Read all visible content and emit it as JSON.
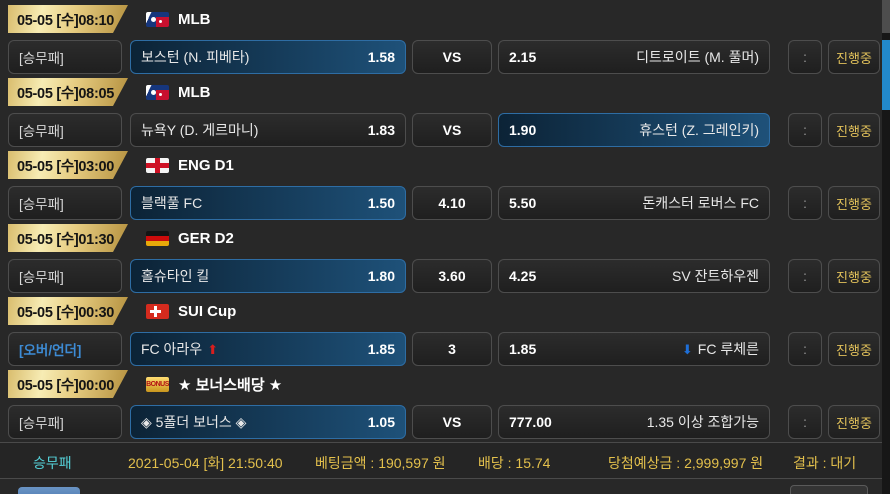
{
  "colors": {
    "gold_banner": "#e6cc81",
    "status_gold": "#e0c05a",
    "selected_gradient_left": "#0c2336",
    "selected_gradient_right": "#1e5179",
    "selected_border": "#2e6da4",
    "market_highlight_blue": "#3d8bd4",
    "summary_market_cyan": "#55d3da",
    "summary_yellow": "#e3c04c",
    "arrow_up_red": "#d81e1e",
    "arrow_down_blue": "#1e6fd8",
    "scroll_thumb_blue": "#2289cc"
  },
  "games": [
    {
      "datetime": "05-05 [수]08:10",
      "league": "MLB",
      "icon": "mlb",
      "icon_text": "",
      "market": "[승무패]",
      "market_highlight": false,
      "home": {
        "name": "보스턴 (N. 피베타)",
        "odds": "1.58",
        "selected": true,
        "arrow": ""
      },
      "draw": "VS",
      "away": {
        "name": "디트로이트 (M. 풀머)",
        "odds": "2.15",
        "selected": false,
        "arrow": ""
      },
      "score": ":",
      "status": "진행중"
    },
    {
      "datetime": "05-05 [수]08:05",
      "league": "MLB",
      "icon": "mlb",
      "icon_text": "",
      "market": "[승무패]",
      "market_highlight": false,
      "home": {
        "name": "뉴욕Y (D. 게르마니)",
        "odds": "1.83",
        "selected": false,
        "arrow": ""
      },
      "draw": "VS",
      "away": {
        "name": "휴스턴 (Z. 그레인키)",
        "odds": "1.90",
        "selected": true,
        "arrow": ""
      },
      "score": ":",
      "status": "진행중"
    },
    {
      "datetime": "05-05 [수]03:00",
      "league": "ENG D1",
      "icon": "eng",
      "icon_text": "",
      "market": "[승무패]",
      "market_highlight": false,
      "home": {
        "name": "블랙풀 FC",
        "odds": "1.50",
        "selected": true,
        "arrow": ""
      },
      "draw": "4.10",
      "away": {
        "name": "돈캐스터 로버스 FC",
        "odds": "5.50",
        "selected": false,
        "arrow": ""
      },
      "score": ":",
      "status": "진행중"
    },
    {
      "datetime": "05-05 [수]01:30",
      "league": "GER D2",
      "icon": "ger",
      "icon_text": "",
      "market": "[승무패]",
      "market_highlight": false,
      "home": {
        "name": "홀슈타인 킬",
        "odds": "1.80",
        "selected": true,
        "arrow": ""
      },
      "draw": "3.60",
      "away": {
        "name": "SV 잔트하우젠",
        "odds": "4.25",
        "selected": false,
        "arrow": ""
      },
      "score": ":",
      "status": "진행중"
    },
    {
      "datetime": "05-05 [수]00:30",
      "league": "SUI Cup",
      "icon": "sui",
      "icon_text": "",
      "market": "[오버/언더]",
      "market_highlight": true,
      "home": {
        "name": "FC 아라우",
        "odds": "1.85",
        "selected": true,
        "arrow": "up"
      },
      "draw": "3",
      "away": {
        "name": "FC 루체른",
        "odds": "1.85",
        "selected": false,
        "arrow": "down"
      },
      "score": ":",
      "status": "진행중"
    },
    {
      "datetime": "05-05 [수]00:00",
      "league": "★ 보너스배당 ★",
      "icon": "bonus",
      "icon_text": "BONUS",
      "market": "[승무패]",
      "market_highlight": false,
      "home": {
        "name": "◈ 5폴더 보너스 ◈",
        "odds": "1.05",
        "selected": true,
        "arrow": ""
      },
      "draw": "VS",
      "away": {
        "name": "1.35 이상 조합가능",
        "odds": "777.00",
        "selected": false,
        "arrow": ""
      },
      "score": ":",
      "status": "진행중"
    }
  ],
  "summary": {
    "market": "승무패",
    "datetime": "2021-05-04 [화] 21:50:40",
    "bet_amount": "베팅금액 : 190,597 원",
    "total_odds": "배당 : 15.74",
    "expected_win": "당첨예상금 : 2,999,997 원",
    "result": "결과 : 대기"
  }
}
